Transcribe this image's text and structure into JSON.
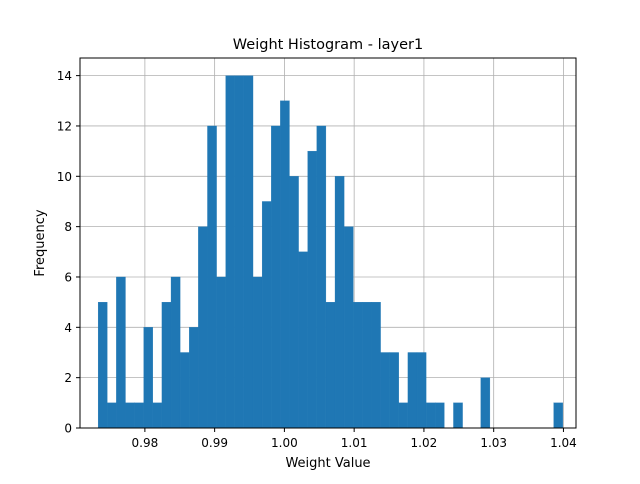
{
  "chart_data": {
    "type": "bar",
    "title": "Weight Histogram - layer1",
    "xlabel": "Weight Value",
    "ylabel": "Frequency",
    "xlim": [
      0.9707,
      1.0418
    ],
    "ylim": [
      0,
      14.7
    ],
    "grid": true,
    "bar_color": "#1f77b4",
    "x_ticks": [
      0.98,
      0.99,
      1.0,
      1.01,
      1.02,
      1.03,
      1.04
    ],
    "x_tick_labels": [
      "0.98",
      "0.99",
      "1.00",
      "1.01",
      "1.02",
      "1.03",
      "1.04"
    ],
    "y_ticks": [
      0,
      2,
      4,
      6,
      8,
      10,
      12,
      14
    ],
    "y_tick_labels": [
      "0",
      "2",
      "4",
      "6",
      "8",
      "10",
      "12",
      "14"
    ],
    "bin_start": 0.9733,
    "bin_width": 0.001306,
    "counts": [
      5,
      1,
      6,
      1,
      1,
      4,
      1,
      5,
      6,
      3,
      4,
      8,
      12,
      6,
      14,
      14,
      14,
      6,
      9,
      12,
      13,
      10,
      7,
      11,
      12,
      5,
      10,
      8,
      5,
      5,
      5,
      3,
      3,
      1,
      3,
      3,
      1,
      1,
      0,
      1,
      0,
      0,
      2,
      0,
      0,
      0,
      0,
      0,
      0,
      0,
      1
    ]
  }
}
